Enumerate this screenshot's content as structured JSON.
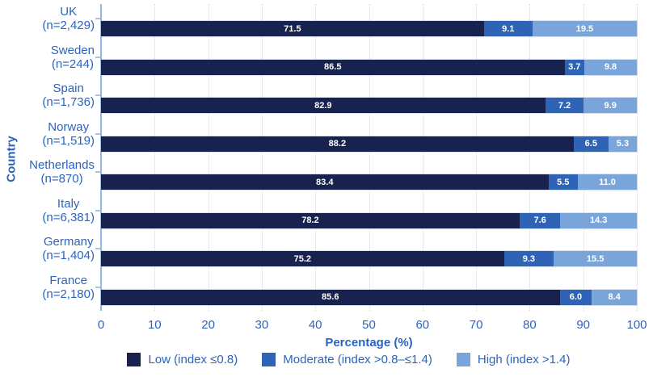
{
  "colors": {
    "low_navy": "#18224E",
    "moderate_blue": "#2E63B5",
    "high_light_blue": "#79A5DB",
    "text_blue": "#2B64BE",
    "axis_line": "#8FB8E6",
    "gridline": "#D6D6D6",
    "value_label": "#FFFFFF",
    "background": "#FFFFFF"
  },
  "chart_data": {
    "type": "bar",
    "orientation": "horizontal",
    "stacked": true,
    "title": "",
    "xlabel": "Percentage (%)",
    "ylabel": "Country",
    "xlim": [
      0,
      100
    ],
    "xticks": [
      0,
      10,
      20,
      30,
      40,
      50,
      60,
      70,
      80,
      90,
      100
    ],
    "grid": "vertical-dotted",
    "legend_position": "bottom",
    "categories": [
      {
        "country": "UK",
        "n_label": "(n=2,429)"
      },
      {
        "country": "Sweden",
        "n_label": "(n=244)"
      },
      {
        "country": "Spain",
        "n_label": "(n=1,736)"
      },
      {
        "country": "Norway",
        "n_label": "(n=1,519)"
      },
      {
        "country": "Netherlands",
        "n_label": "(n=870)"
      },
      {
        "country": "Italy",
        "n_label": "(n=6,381)"
      },
      {
        "country": "Germany",
        "n_label": "(n=1,404)"
      },
      {
        "country": "France",
        "n_label": "(n=2,180)"
      }
    ],
    "series": [
      {
        "name": "Low (index ≤0.8)",
        "color": "#18224E",
        "values": [
          71.5,
          86.5,
          82.9,
          88.2,
          83.4,
          78.2,
          75.2,
          85.6
        ]
      },
      {
        "name": "Moderate (index >0.8–≤1.4)",
        "color": "#2E63B5",
        "values": [
          9.1,
          3.7,
          7.2,
          6.5,
          5.5,
          7.6,
          9.3,
          6.0
        ]
      },
      {
        "name": "High (index >1.4)",
        "color": "#79A5DB",
        "values": [
          19.5,
          9.8,
          9.9,
          5.3,
          11.0,
          14.3,
          15.5,
          8.4
        ]
      }
    ]
  }
}
